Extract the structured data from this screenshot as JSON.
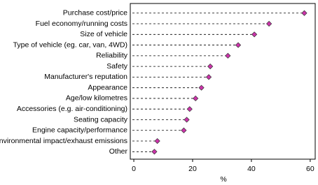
{
  "chart_data": {
    "type": "dot",
    "categories": [
      "Purchase cost/price",
      "Fuel economy/running costs",
      "Size of vehicle",
      "Type of vehicle (eg. car, van, 4WD)",
      "Reliability",
      "Safety",
      "Manufacturer's reputation",
      "Appearance",
      "Age/low kilometres",
      "Accessories (e.g. air-conditioning)",
      "Seating capacity",
      "Engine capacity/performance",
      "Environmental impact/exhaust emissions",
      "Other"
    ],
    "values": [
      58,
      46,
      41,
      35.5,
      32,
      26,
      25.5,
      23,
      21,
      19,
      18,
      17,
      8,
      7
    ],
    "color": "#cc33aa",
    "xlabel": "%",
    "xlim": [
      -1.2,
      61.7
    ],
    "xticks": [
      0,
      20,
      40,
      60
    ]
  }
}
